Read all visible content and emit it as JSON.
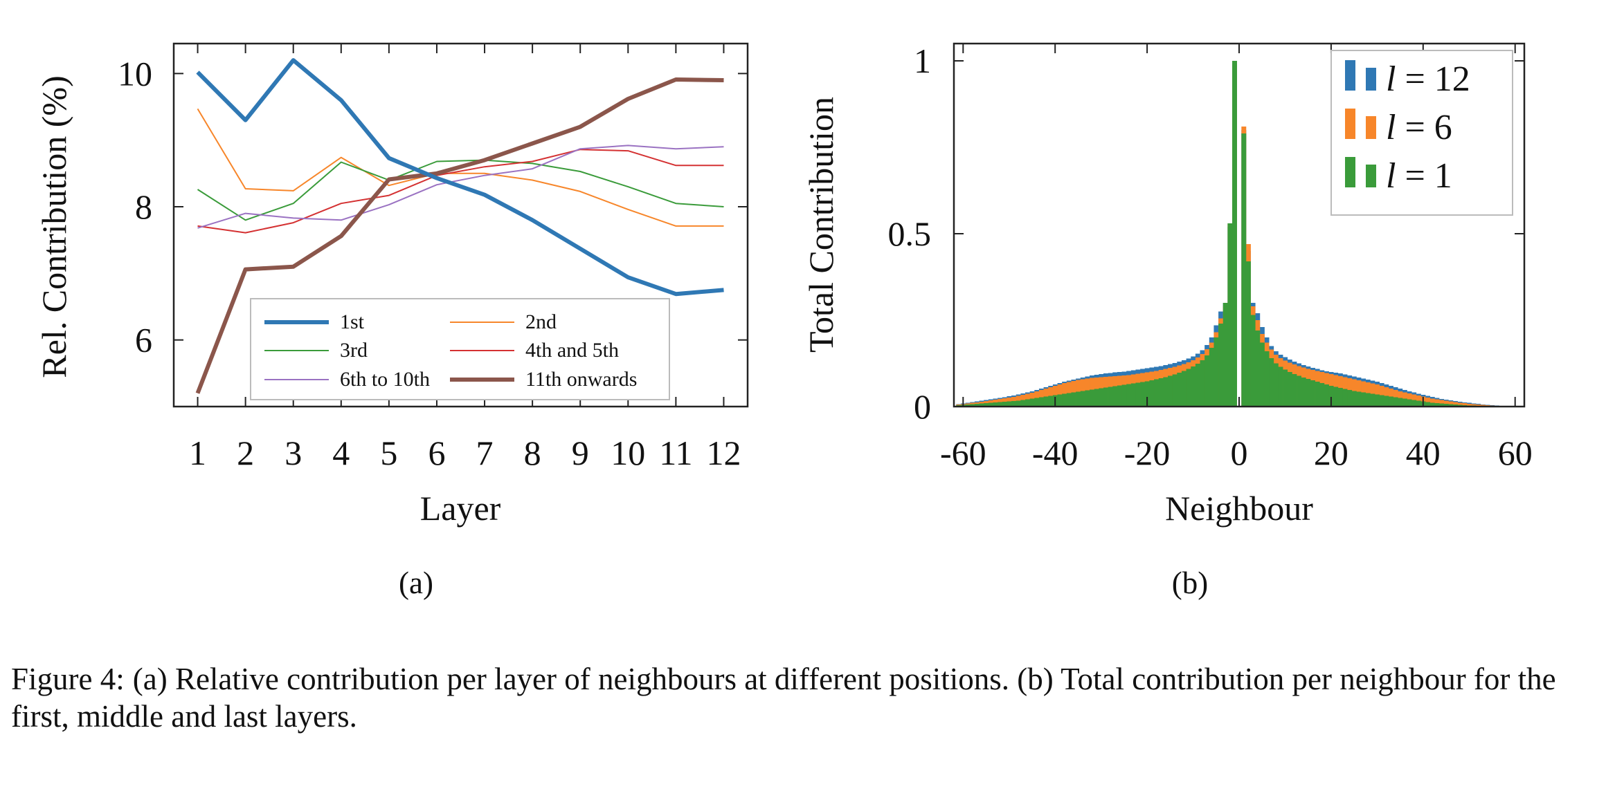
{
  "caption": {
    "label": "Figure 4:",
    "text": "(a) Relative contribution per layer of neighbours at different positions. (b) Total contribution per neighbour for the first, middle and last layers."
  },
  "chart_data": [
    {
      "panel_label": "(a)",
      "type": "line",
      "xlabel": "Layer",
      "ylabel": "Rel. Contribution (%)",
      "x": [
        1,
        2,
        3,
        4,
        5,
        6,
        7,
        8,
        9,
        10,
        11,
        12
      ],
      "xlim": [
        0.5,
        12.5
      ],
      "ylim": [
        5.0,
        10.45
      ],
      "yticks": [
        6,
        8,
        10
      ],
      "legend_position": "bottom-center",
      "legend_columns": 2,
      "series": [
        {
          "name": "1st",
          "color": "#2f78b4",
          "width": "thick",
          "values": [
            10.02,
            9.3,
            10.2,
            9.6,
            8.73,
            8.43,
            8.18,
            7.8,
            7.37,
            6.94,
            6.69,
            6.75
          ]
        },
        {
          "name": "2nd",
          "color": "#f7862a",
          "width": "thin",
          "values": [
            9.47,
            8.27,
            8.24,
            8.74,
            8.32,
            8.5,
            8.5,
            8.4,
            8.23,
            7.96,
            7.71,
            7.71
          ]
        },
        {
          "name": "3rd",
          "color": "#3a9b3a",
          "width": "thin",
          "values": [
            8.26,
            7.8,
            8.05,
            8.67,
            8.4,
            8.68,
            8.7,
            8.65,
            8.53,
            8.3,
            8.05,
            8.0
          ]
        },
        {
          "name": "4th and 5th",
          "color": "#d43132",
          "width": "thin",
          "values": [
            7.71,
            7.61,
            7.76,
            8.05,
            8.17,
            8.47,
            8.6,
            8.68,
            8.86,
            8.84,
            8.62,
            8.62
          ]
        },
        {
          "name": "6th to 10th",
          "color": "#9a72c2",
          "width": "thin",
          "values": [
            7.68,
            7.9,
            7.83,
            7.8,
            8.03,
            8.33,
            8.47,
            8.57,
            8.87,
            8.92,
            8.87,
            8.9
          ]
        },
        {
          "name": "11th onwards",
          "color": "#8b564b",
          "width": "thick",
          "values": [
            5.2,
            7.06,
            7.1,
            7.56,
            8.41,
            8.5,
            8.7,
            8.95,
            9.2,
            9.62,
            9.91,
            9.9
          ]
        }
      ]
    },
    {
      "panel_label": "(b)",
      "type": "bar",
      "xlabel": "Neighbour",
      "ylabel": "Total Contribution",
      "xlim": [
        -62,
        62
      ],
      "ylim": [
        0,
        1.05
      ],
      "xticks": [
        -60,
        -40,
        -20,
        0,
        20,
        40,
        60
      ],
      "xtick_labels": [
        "-60",
        "-40",
        "-20",
        "0",
        "20",
        "40",
        "60"
      ],
      "yticks": [
        0,
        0.5,
        1
      ],
      "ytick_labels": [
        "0",
        "0.5",
        "1"
      ],
      "legend_position": "top-right",
      "x": [
        -61,
        -60,
        -59,
        -58,
        -57,
        -56,
        -55,
        -54,
        -53,
        -52,
        -51,
        -50,
        -49,
        -48,
        -47,
        -46,
        -45,
        -44,
        -43,
        -42,
        -41,
        -40,
        -39,
        -38,
        -37,
        -36,
        -35,
        -34,
        -33,
        -32,
        -31,
        -30,
        -29,
        -28,
        -27,
        -26,
        -25,
        -24,
        -23,
        -22,
        -21,
        -20,
        -19,
        -18,
        -17,
        -16,
        -15,
        -14,
        -13,
        -12,
        -11,
        -10,
        -9,
        -8,
        -7,
        -6,
        -5,
        -4,
        -3,
        -2,
        -1,
        0,
        1,
        2,
        3,
        4,
        5,
        6,
        7,
        8,
        9,
        10,
        11,
        12,
        13,
        14,
        15,
        16,
        17,
        18,
        19,
        20,
        21,
        22,
        23,
        24,
        25,
        26,
        27,
        28,
        29,
        30,
        31,
        32,
        33,
        34,
        35,
        36,
        37,
        38,
        39,
        40,
        41,
        42,
        43,
        44,
        45,
        46,
        47,
        48,
        49,
        50,
        51,
        52,
        53,
        54,
        55,
        56,
        57,
        58,
        59,
        60,
        61
      ],
      "series": [
        {
          "name": "l = 12",
          "legend_var": "l",
          "legend_value": "12",
          "color": "#2f78b4",
          "values": [
            0.007,
            0.009,
            0.011,
            0.013,
            0.015,
            0.017,
            0.019,
            0.021,
            0.023,
            0.025,
            0.027,
            0.03,
            0.032,
            0.035,
            0.038,
            0.041,
            0.044,
            0.048,
            0.052,
            0.056,
            0.06,
            0.064,
            0.068,
            0.072,
            0.075,
            0.078,
            0.081,
            0.084,
            0.087,
            0.09,
            0.092,
            0.094,
            0.096,
            0.097,
            0.099,
            0.1,
            0.101,
            0.103,
            0.105,
            0.107,
            0.109,
            0.111,
            0.113,
            0.115,
            0.117,
            0.12,
            0.123,
            0.126,
            0.13,
            0.134,
            0.139,
            0.145,
            0.153,
            0.163,
            0.178,
            0.2,
            0.235,
            0.275,
            0.3,
            0.52,
            0.99,
            0,
            0.8,
            0.45,
            0.3,
            0.27,
            0.23,
            0.2,
            0.175,
            0.16,
            0.15,
            0.143,
            0.136,
            0.13,
            0.125,
            0.12,
            0.116,
            0.112,
            0.109,
            0.105,
            0.102,
            0.1,
            0.098,
            0.096,
            0.093,
            0.09,
            0.087,
            0.084,
            0.081,
            0.078,
            0.075,
            0.072,
            0.068,
            0.064,
            0.06,
            0.056,
            0.052,
            0.048,
            0.044,
            0.041,
            0.037,
            0.034,
            0.031,
            0.028,
            0.025,
            0.022,
            0.02,
            0.018,
            0.016,
            0.014,
            0.012,
            0.011,
            0.009,
            0.008,
            0.006,
            0.005,
            0.004,
            0.003,
            0.002,
            0.002,
            0.001,
            0.001,
            0.001
          ]
        },
        {
          "name": "l = 6",
          "legend_var": "l",
          "legend_value": "6",
          "color": "#f7862a",
          "values": [
            0.006,
            0.007,
            0.009,
            0.011,
            0.012,
            0.014,
            0.016,
            0.018,
            0.02,
            0.022,
            0.024,
            0.026,
            0.028,
            0.031,
            0.034,
            0.037,
            0.04,
            0.044,
            0.048,
            0.052,
            0.056,
            0.06,
            0.064,
            0.068,
            0.071,
            0.074,
            0.077,
            0.079,
            0.081,
            0.083,
            0.084,
            0.085,
            0.086,
            0.087,
            0.088,
            0.089,
            0.09,
            0.091,
            0.093,
            0.095,
            0.097,
            0.099,
            0.101,
            0.103,
            0.106,
            0.109,
            0.112,
            0.115,
            0.119,
            0.123,
            0.128,
            0.134,
            0.142,
            0.152,
            0.166,
            0.185,
            0.215,
            0.255,
            0.29,
            0.53,
            0.99,
            0,
            0.81,
            0.47,
            0.29,
            0.25,
            0.21,
            0.185,
            0.165,
            0.15,
            0.14,
            0.133,
            0.127,
            0.122,
            0.117,
            0.113,
            0.109,
            0.106,
            0.103,
            0.1,
            0.097,
            0.094,
            0.091,
            0.088,
            0.085,
            0.082,
            0.079,
            0.076,
            0.073,
            0.07,
            0.067,
            0.064,
            0.06,
            0.056,
            0.052,
            0.048,
            0.044,
            0.041,
            0.038,
            0.035,
            0.032,
            0.029,
            0.026,
            0.023,
            0.021,
            0.019,
            0.017,
            0.015,
            0.013,
            0.011,
            0.01,
            0.008,
            0.007,
            0.006,
            0.005,
            0.004,
            0.003,
            0.002,
            0.002,
            0.001,
            0.001,
            0.001,
            0
          ]
        },
        {
          "name": "l = 1",
          "legend_var": "l",
          "legend_value": "1",
          "color": "#3a9b3a",
          "values": [
            0.004,
            0.005,
            0.006,
            0.007,
            0.008,
            0.009,
            0.01,
            0.011,
            0.012,
            0.013,
            0.014,
            0.015,
            0.016,
            0.017,
            0.019,
            0.021,
            0.023,
            0.025,
            0.027,
            0.029,
            0.031,
            0.033,
            0.035,
            0.037,
            0.039,
            0.041,
            0.043,
            0.045,
            0.047,
            0.049,
            0.051,
            0.053,
            0.055,
            0.057,
            0.059,
            0.061,
            0.063,
            0.065,
            0.067,
            0.069,
            0.071,
            0.073,
            0.076,
            0.079,
            0.082,
            0.085,
            0.089,
            0.093,
            0.098,
            0.103,
            0.109,
            0.116,
            0.124,
            0.134,
            0.148,
            0.17,
            0.2,
            0.24,
            0.3,
            0.53,
            1.0,
            0,
            0.79,
            0.42,
            0.265,
            0.22,
            0.185,
            0.16,
            0.14,
            0.125,
            0.115,
            0.107,
            0.1,
            0.094,
            0.089,
            0.084,
            0.08,
            0.076,
            0.072,
            0.068,
            0.064,
            0.06,
            0.057,
            0.054,
            0.051,
            0.048,
            0.045,
            0.043,
            0.041,
            0.039,
            0.037,
            0.035,
            0.033,
            0.031,
            0.029,
            0.027,
            0.025,
            0.023,
            0.021,
            0.019,
            0.017,
            0.015,
            0.013,
            0.011,
            0.01,
            0.009,
            0.008,
            0.007,
            0.006,
            0.005,
            0.004,
            0.003,
            0.003,
            0.002,
            0.002,
            0.001,
            0.001,
            0.001,
            0,
            0,
            0,
            0,
            0
          ]
        }
      ]
    }
  ]
}
